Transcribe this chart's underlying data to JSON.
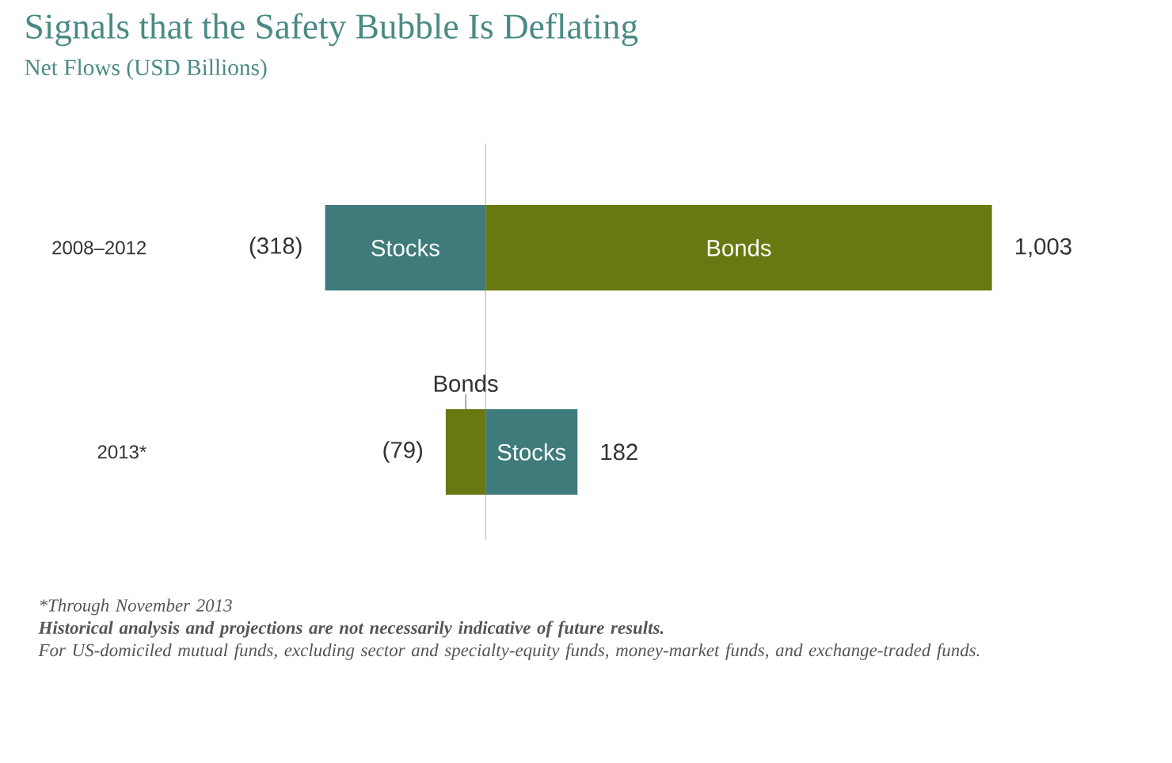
{
  "chart_data": {
    "type": "bar",
    "orientation": "horizontal",
    "stacked": true,
    "title": "Signals that the Safety Bubble Is Deflating",
    "subtitle": "Net Flows (USD Billions)",
    "categories": [
      "2008–2012",
      "2013*"
    ],
    "series": [
      {
        "name": "Stocks",
        "color": "#3f7b7b",
        "values": [
          -318,
          182
        ],
        "value_labels": [
          "(318)",
          "182"
        ]
      },
      {
        "name": "Bonds",
        "color": "#697811",
        "values": [
          1003,
          -79
        ],
        "value_labels": [
          "1,003",
          "(79)"
        ]
      }
    ],
    "annotations": [
      "*Through November 2013",
      "Historical analysis and projections are not necessarily indicative of future results.",
      "For US-domiciled mutual funds, excluding sector and specialty-equity funds, money-market funds, and exchange-traded funds."
    ]
  }
}
